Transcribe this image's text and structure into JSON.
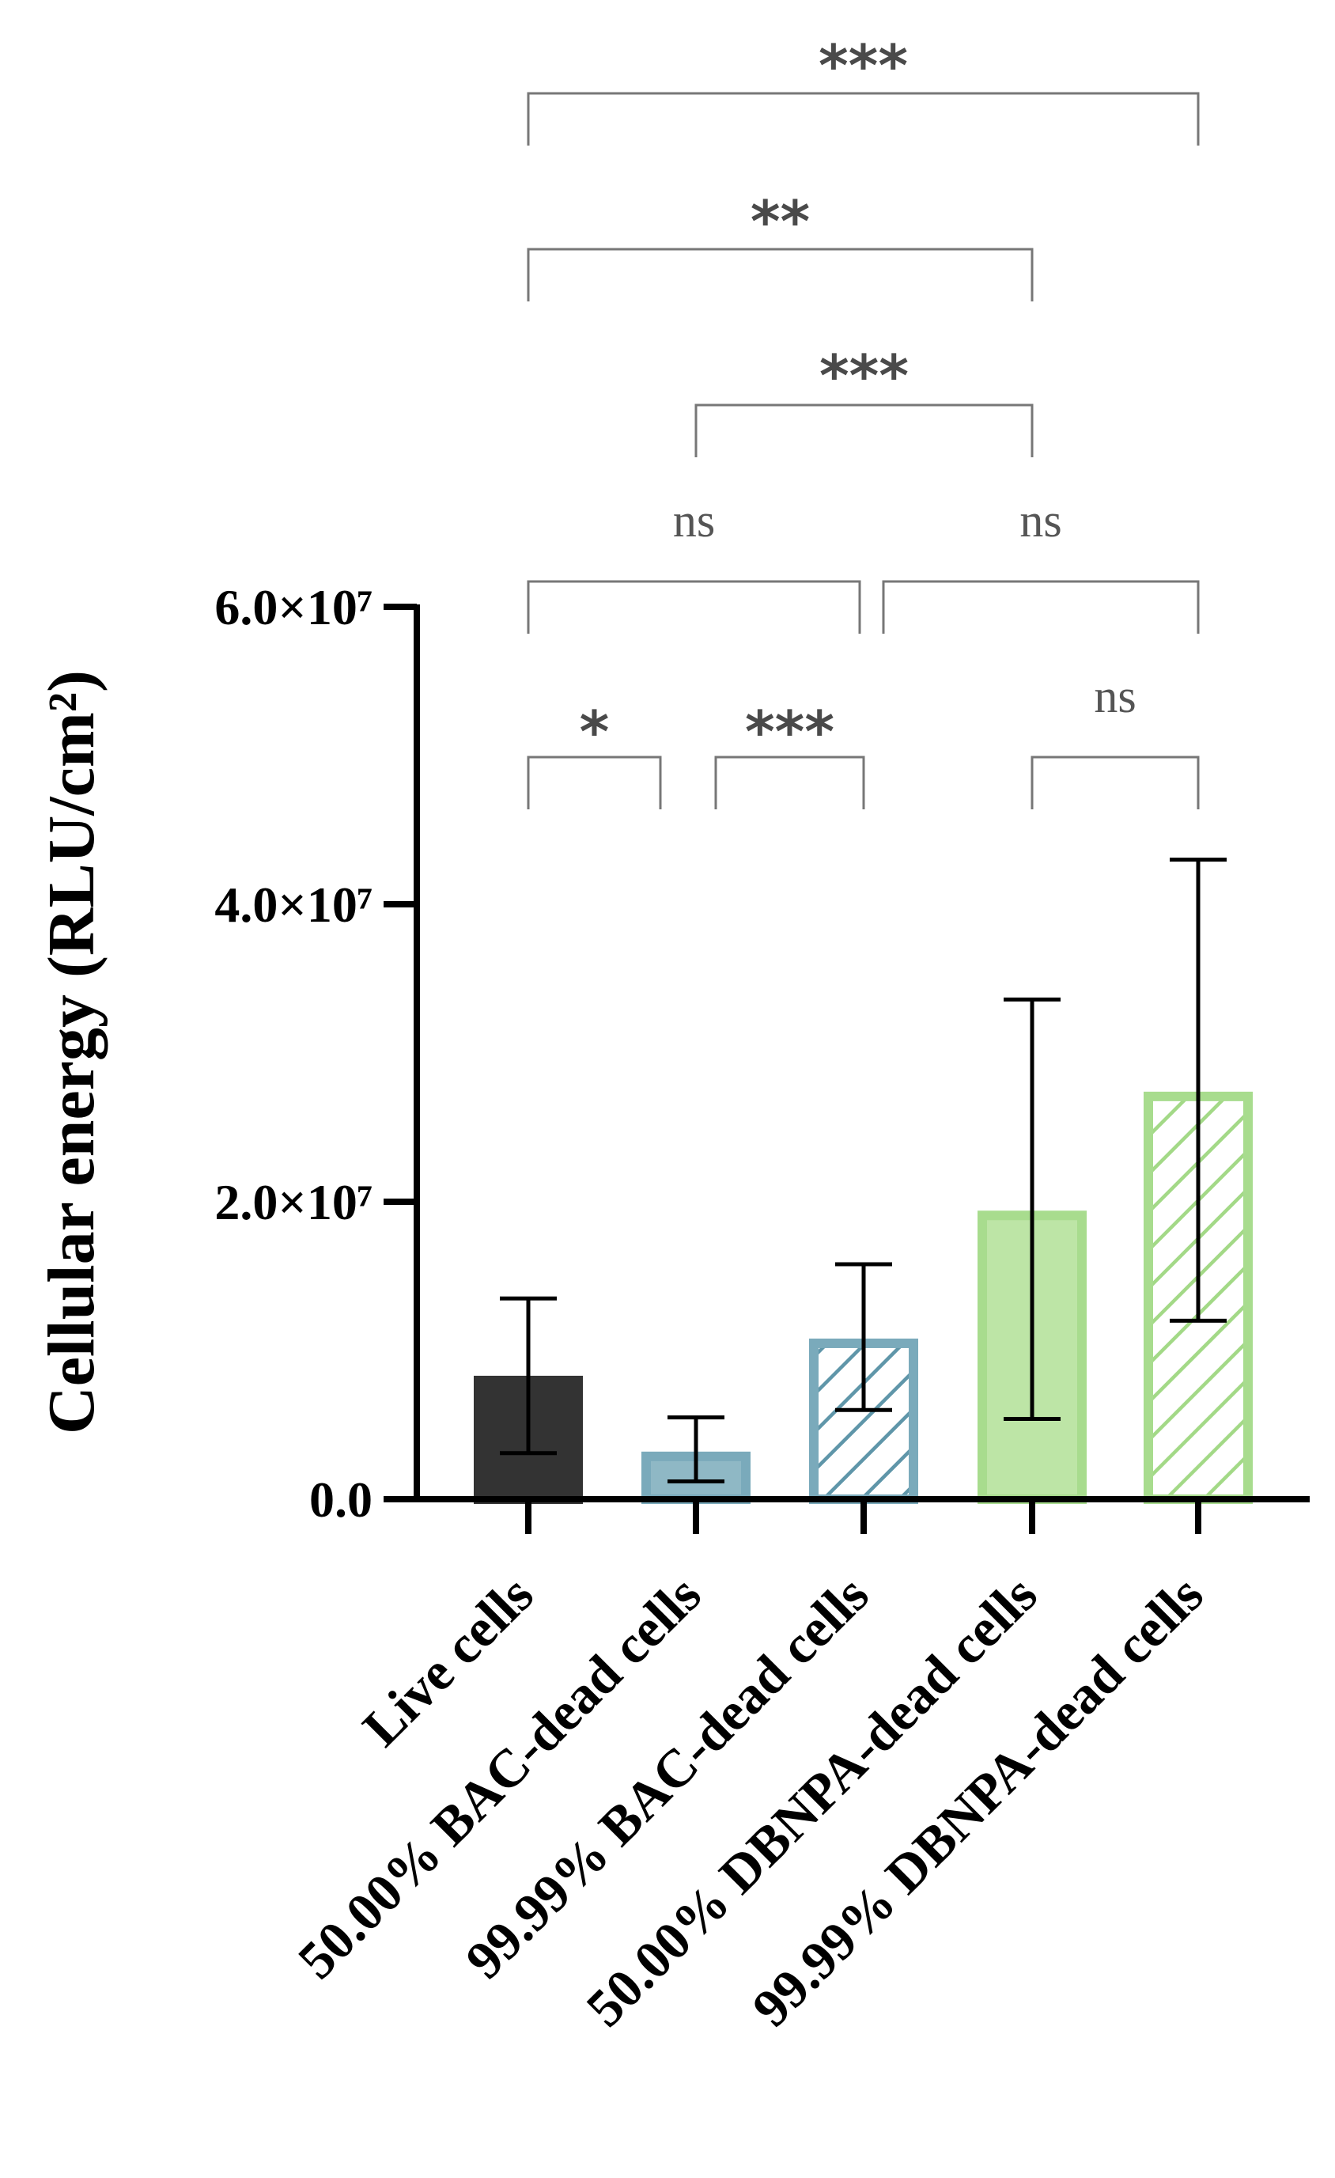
{
  "chart_data": {
    "type": "bar",
    "ylabel": "Cellular energy (RLU/cm²)",
    "ylim": [
      0,
      60000000
    ],
    "yticks": [
      {
        "value": 0,
        "label": "0.0"
      },
      {
        "value": 20000000,
        "label": "2.0×10⁷"
      },
      {
        "value": 40000000,
        "label": "4.0×10⁷"
      },
      {
        "value": 60000000,
        "label": "6.0×10⁷"
      }
    ],
    "categories": [
      "Live cells",
      "50.00% BAC-dead cells",
      "99.99% BAC-dead cells",
      "50.00% DBNPA-dead cells",
      "99.99% DBNPA-dead cells"
    ],
    "values": [
      8300000,
      3200000,
      10800000,
      19400000,
      27400000
    ],
    "error_low": [
      3100000,
      1200000,
      6000000,
      5400000,
      12000000
    ],
    "error_high": [
      13500000,
      5500000,
      15800000,
      33600000,
      43000000
    ],
    "colors": {
      "live": "#333333",
      "bac_fill": "#8fb8c5",
      "bac_edge": "#7aaabb",
      "bac_hatch": "#5f96a9",
      "dbnpa_fill": "#bde5a6",
      "dbnpa_edge": "#a8dc8e",
      "dbnpa_hatch": "#a3d987",
      "axis": "#000000",
      "bracket": "#777777",
      "sig_text": "#4a4a4a",
      "ns_text": "#555555"
    },
    "bar_styles": [
      "solid-dark",
      "solid-teal",
      "hatched-teal",
      "solid-green",
      "hatched-green"
    ],
    "grid": false,
    "significance": [
      {
        "from": 0,
        "to": 1,
        "label": "*"
      },
      {
        "from": 1,
        "to": 2,
        "label": "***"
      },
      {
        "from": 3,
        "to": 4,
        "label": "ns"
      },
      {
        "from": 0,
        "to": 2,
        "label": "ns"
      },
      {
        "from": 2,
        "to": 4,
        "label": "ns"
      },
      {
        "from": 1,
        "to": 3,
        "label": "***"
      },
      {
        "from": 0,
        "to": 3,
        "label": "**"
      },
      {
        "from": 0,
        "to": 4,
        "label": "***"
      }
    ]
  }
}
